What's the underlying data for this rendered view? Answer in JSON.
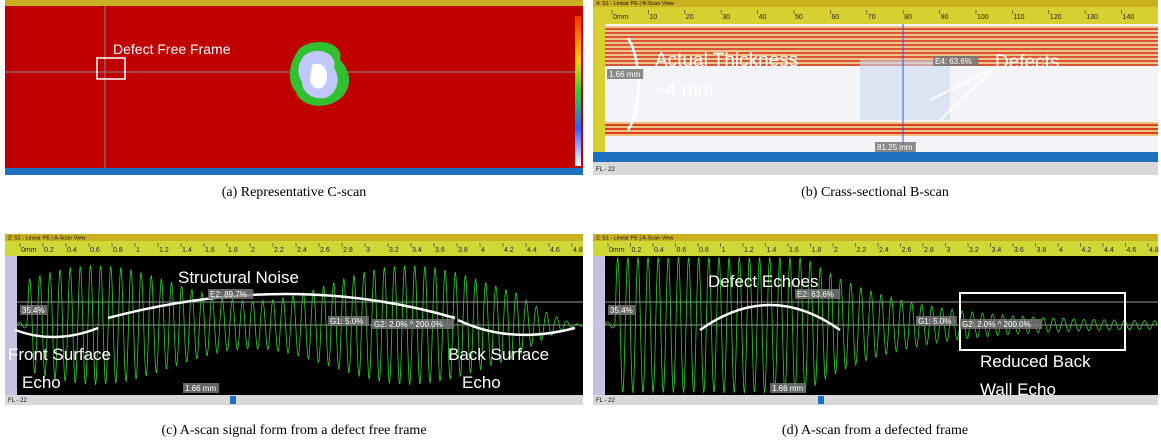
{
  "panels": [
    {
      "annotation": "Defect Free Frame",
      "caption": "(a) Representative C-scan"
    },
    {
      "window_title": "4: S1 - Linear PE | B-Scan View",
      "ruler": [
        "0mm",
        "10",
        "20",
        "30",
        "40",
        "50",
        "60",
        "70",
        "80",
        "90",
        "100",
        "110",
        "120",
        "130",
        "140"
      ],
      "annotations": [
        "Actual Thickness",
        "~4 mm",
        "Defects"
      ],
      "readouts": [
        "1.66 mm",
        "E4: 63.6%",
        "81.25 mm"
      ],
      "footer": "FL - 22",
      "caption": "(b) Crass-sectional B-scan"
    },
    {
      "window_title": "2: S1 - Linear PE | A-Scan View",
      "ruler": [
        "0mm",
        "0.2",
        "0.4",
        "0.6",
        "0.8",
        "1",
        "1.2",
        "1.4",
        "1.6",
        "1.8",
        "2",
        "2.2",
        "2.4",
        "2.6",
        "2.8",
        "3",
        "3.2",
        "3.4",
        "3.6",
        "3.8",
        "4",
        "4.2",
        "4.4",
        "4.6",
        "4.8"
      ],
      "annotations": [
        "Structural Noise",
        "Front Surface",
        "Echo",
        "Back Surface",
        "Echo"
      ],
      "readouts": [
        "35.4%",
        "E2: 89.7%",
        "G1: 5.0%",
        "G2: 2.0% ^ 200.0%",
        "1.66 mm"
      ],
      "footer": "FL - 22",
      "caption": "(c) A-scan signal form from a defect free frame"
    },
    {
      "window_title": "2: S1 - Linear PE | A-Scan View",
      "ruler": [
        "0mm",
        "0.2",
        "0.4",
        "0.6",
        "0.8",
        "1",
        "1.2",
        "1.4",
        "1.6",
        "1.8",
        "2",
        "2.2",
        "2.4",
        "2.6",
        "2.8",
        "3",
        "3.2",
        "3.4",
        "3.6",
        "3.8",
        "4",
        "4.2",
        "4.4",
        "4.6",
        "4.8"
      ],
      "annotations": [
        "Defect Echoes",
        "Reduced Back",
        "Wall Echo"
      ],
      "readouts": [
        "35.4%",
        "E2: 63.6%",
        "G1: 5.0%",
        "G2: 2.0% ^ 200.0%",
        "1.66 mm"
      ],
      "footer": "FL - 22",
      "caption": "(d) A-scan from a defected frame"
    }
  ]
}
